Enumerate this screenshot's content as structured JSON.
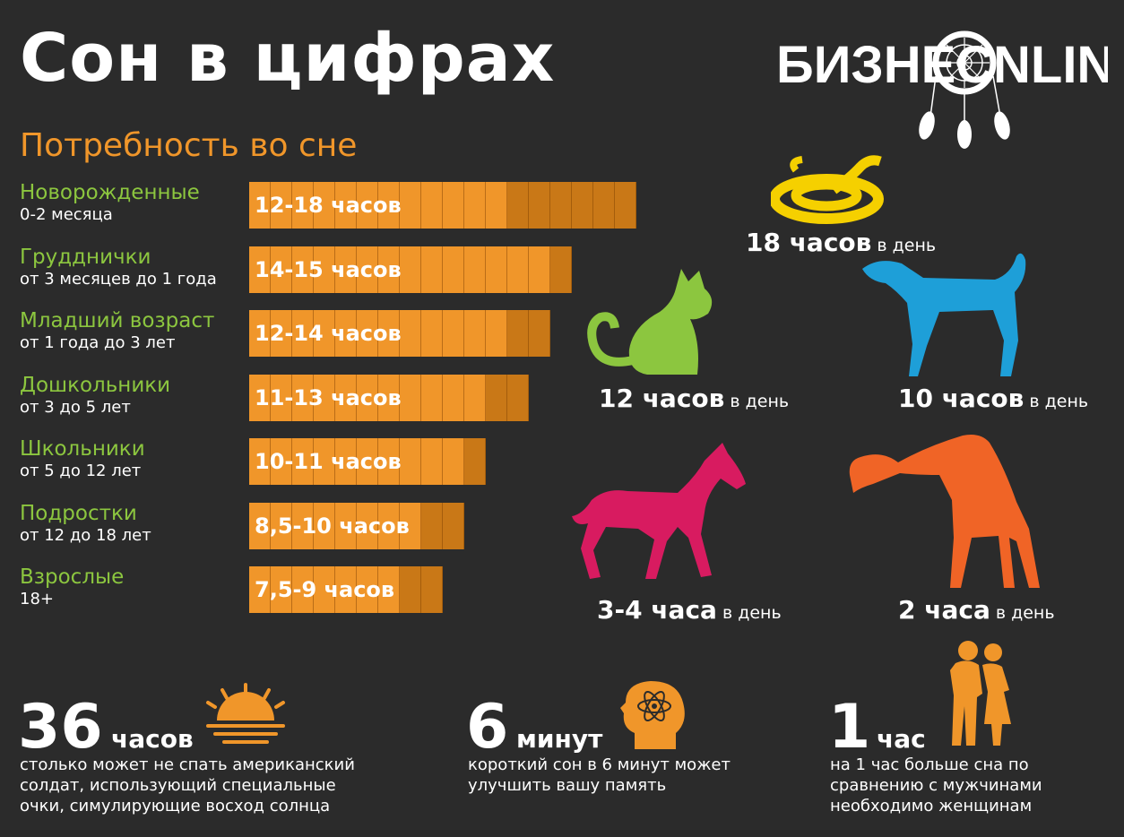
{
  "title": "Сон в цифрах",
  "logo": {
    "left": "БИЗНЕС",
    "right": "NLINE"
  },
  "subtitle": "Потребность во сне",
  "colors": {
    "orange": "#f0962a",
    "green": "#8cc63f",
    "snake": "#f5d000",
    "cat": "#8cc63f",
    "dog": "#1e9fd8",
    "horse": "#d81b60",
    "giraffe": "#f06426",
    "background": "#2b2b2b"
  },
  "chart_data": {
    "type": "bar",
    "title": "Потребность во сне",
    "unit": "часов",
    "categories": [
      {
        "name": "Новорожденные",
        "range": "0-2 месяца",
        "label": "12-18 часов",
        "min": 12,
        "max": 18
      },
      {
        "name": "Грудднички",
        "range": "от 3 месяцев до 1 года",
        "label": "14-15 часов",
        "min": 14,
        "max": 15
      },
      {
        "name": "Младший возраст",
        "range": "от 1 года до 3 лет",
        "label": "12-14 часов",
        "min": 12,
        "max": 14
      },
      {
        "name": "Дошкольники",
        "range": "от 3  до 5 лет",
        "label": "11-13 часов",
        "min": 11,
        "max": 13
      },
      {
        "name": "Школьники",
        "range": "от 5  до 12 лет",
        "label": "10-11 часов",
        "min": 10,
        "max": 11
      },
      {
        "name": "Подростки",
        "range": "от 12  до 18 лет",
        "label": "8,5-10 часов",
        "min": 8.5,
        "max": 10
      },
      {
        "name": "Взрослые",
        "range": "18+",
        "label": "7,5-9 часов",
        "min": 7.5,
        "max": 9
      }
    ]
  },
  "animals": [
    {
      "key": "snake",
      "icon": "snake-icon",
      "hours": "18 часов",
      "per": "в день"
    },
    {
      "key": "cat",
      "icon": "cat-icon",
      "hours": "12 часов",
      "per": "в день"
    },
    {
      "key": "dog",
      "icon": "dog-icon",
      "hours": "10 часов",
      "per": "в день"
    },
    {
      "key": "horse",
      "icon": "horse-icon",
      "hours": "3-4 часа",
      "per": "в день"
    },
    {
      "key": "giraffe",
      "icon": "giraffe-icon",
      "hours": "2 часа",
      "per": "в день"
    }
  ],
  "facts": [
    {
      "icon": "sunrise-icon",
      "number": "36",
      "unit": "часов",
      "text": "столько может не спать американский солдат, использующий специальные очки, симулирующие восход солнца"
    },
    {
      "icon": "brain-atom-icon",
      "number": "6",
      "unit": "минут",
      "text": "короткий сон в 6 минут может улучшить вашу память"
    },
    {
      "icon": "couple-icon",
      "number": "1",
      "unit": "час",
      "text": "на 1 час больше сна по сравнению с мужчинами необходимо женщинам"
    }
  ]
}
